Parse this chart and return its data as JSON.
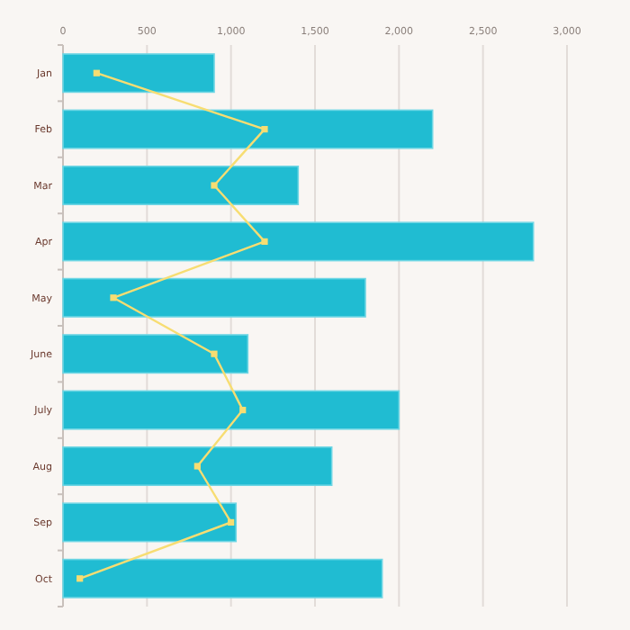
{
  "chart_data": {
    "type": "bar",
    "orientation": "horizontal",
    "categories": [
      "Jan",
      "Feb",
      "Mar",
      "Apr",
      "May",
      "June",
      "July",
      "Aug",
      "Sep",
      "Oct"
    ],
    "series": [
      {
        "color": "#20bcd2",
        "values": [
          900,
          2200,
          1400,
          2800,
          1800,
          1100,
          2000,
          1600,
          1030,
          1900
        ]
      },
      {
        "type": "line",
        "color": "#f7dd72",
        "marker": "square",
        "values": [
          200,
          1200,
          900,
          1200,
          300,
          900,
          1070,
          800,
          1000,
          100
        ]
      }
    ],
    "xlim": [
      0,
      3000
    ],
    "xticks": [
      0,
      {
        "value": 500,
        "label": "500"
      },
      {
        "value": 1000,
        "label": "1,000"
      },
      {
        "value": 1500,
        "label": "1,500"
      },
      {
        "value": 2000,
        "label": "2,000"
      },
      {
        "value": 2500,
        "label": "2,500"
      },
      {
        "value": 3000,
        "label": "3,000"
      }
    ],
    "grid": "x"
  }
}
